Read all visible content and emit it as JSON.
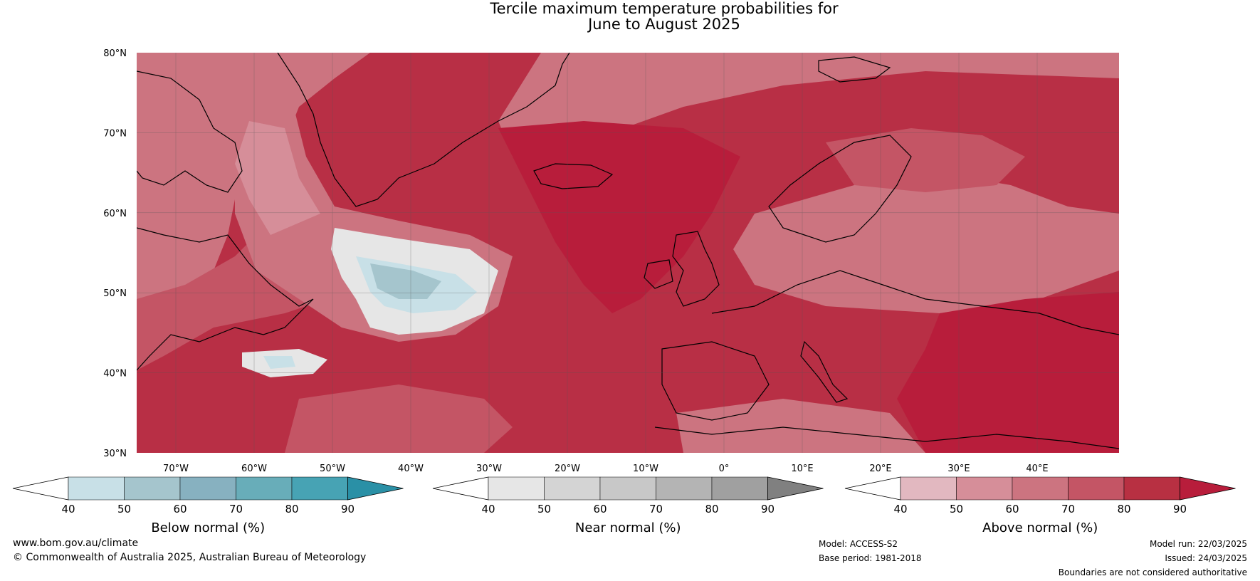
{
  "title": {
    "line1": "Tercile maximum temperature probabilities for",
    "line2": "June to August 2025"
  },
  "map": {
    "lat_labels": [
      "80°N",
      "70°N",
      "60°N",
      "50°N",
      "40°N",
      "30°N"
    ],
    "lon_labels": [
      "70°W",
      "60°W",
      "50°W",
      "40°W",
      "30°W",
      "20°W",
      "10°W",
      "0°",
      "10°E",
      "20°E",
      "30°E",
      "40°E"
    ],
    "background_color": "#b82f45",
    "land_outline_color": "#000000",
    "border_color": "#808080"
  },
  "colorbars": [
    {
      "label": "Below normal (%)",
      "ticks": [
        "40",
        "50",
        "60",
        "70",
        "80",
        "90"
      ],
      "colors": [
        "#ffffff",
        "#c8e0e7",
        "#a5c5cd",
        "#87b1c0",
        "#68adb9",
        "#47a3b4",
        "#2a90a6"
      ]
    },
    {
      "label": "Near normal (%)",
      "ticks": [
        "40",
        "50",
        "60",
        "70",
        "80",
        "90"
      ],
      "colors": [
        "#ffffff",
        "#e6e6e6",
        "#d4d4d4",
        "#c8c8c8",
        "#b4b4b4",
        "#a0a0a0",
        "#808080"
      ]
    },
    {
      "label": "Above normal (%)",
      "ticks": [
        "40",
        "50",
        "60",
        "70",
        "80",
        "90"
      ],
      "colors": [
        "#ffffff",
        "#e2b8c0",
        "#d68e99",
        "#cc7480",
        "#c45565",
        "#b83042",
        "#b81d3b"
      ]
    }
  ],
  "footer": {
    "website": "www.bom.gov.au/climate",
    "copyright": "© Commonwealth of Australia 2025, Australian Bureau of Meteorology",
    "model": "Model: ACCESS-S2",
    "base_period": "Base period: 1981-2018",
    "model_run": "Model run: 22/03/2025",
    "issued": "Issued: 24/03/2025",
    "disclaimer": "Boundaries are not considered authoritative"
  }
}
